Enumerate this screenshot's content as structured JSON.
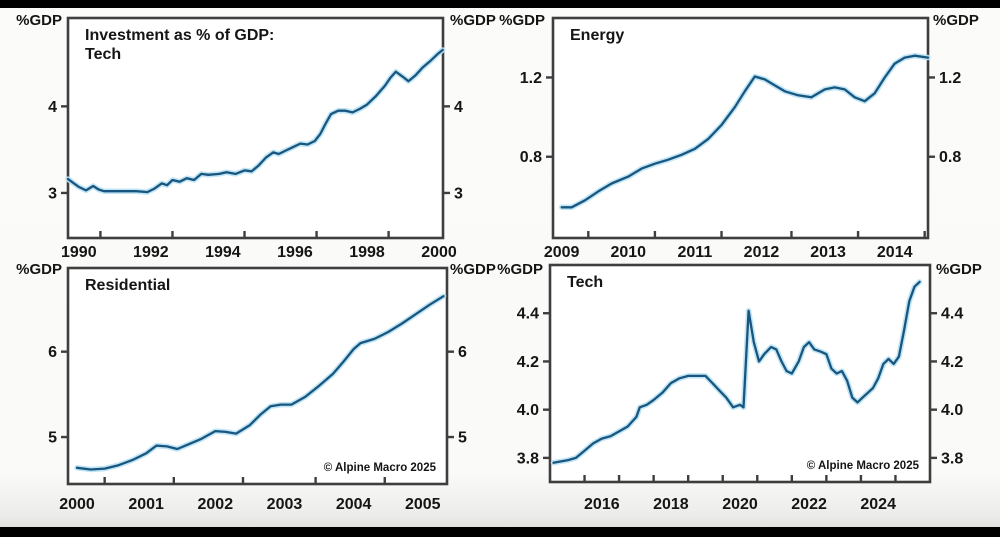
{
  "page": {
    "description": "Four-panel line chart figure: US investment as percent of GDP by sector",
    "unit_label": "%GDP",
    "copyright": "© Alpine Macro 2025"
  },
  "style": {
    "line_color": "#19567f",
    "halo_color": "#b9e2f4",
    "axis_color": "#3e3e3e",
    "text_color": "#151515",
    "plot_bg": "#ffffff"
  },
  "chart_data": [
    {
      "id": "tech-1990s",
      "type": "line",
      "title_lines": [
        "Investment as % of GDP:",
        "Tech"
      ],
      "unit": "%GDP",
      "xlim": [
        1989.7,
        2000.11
      ],
      "ylim": [
        2.48,
        5.02
      ],
      "yticks": [
        3,
        4
      ],
      "ytick_labels": [
        "3",
        "4"
      ],
      "xtick_label_values": [
        1990,
        1992,
        1994,
        1996,
        1998,
        2000
      ],
      "xtick_labels": [
        "1990",
        "1992",
        "1994",
        "1996",
        "1998",
        "2000"
      ],
      "xtick_marks": [
        1990.6,
        1992.6,
        1994.6,
        1996.6,
        1998.6
      ],
      "show_copyright": false,
      "x": [
        1989.7,
        1990.0,
        1990.2,
        1990.4,
        1990.55,
        1990.7,
        1991.0,
        1991.3,
        1991.6,
        1991.9,
        1992.1,
        1992.3,
        1992.45,
        1992.6,
        1992.8,
        1993.0,
        1993.2,
        1993.4,
        1993.6,
        1993.9,
        1994.1,
        1994.35,
        1994.6,
        1994.8,
        1995.0,
        1995.2,
        1995.4,
        1995.55,
        1995.75,
        1995.95,
        1996.15,
        1996.35,
        1996.55,
        1996.7,
        1996.85,
        1997.0,
        1997.2,
        1997.4,
        1997.6,
        1997.8,
        1998.0,
        1998.25,
        1998.5,
        1998.65,
        1998.8,
        1999.0,
        1999.15,
        1999.35,
        1999.55,
        1999.75,
        1999.95,
        2000.1
      ],
      "y": [
        3.16,
        3.07,
        3.03,
        3.08,
        3.04,
        3.02,
        3.02,
        3.02,
        3.02,
        3.01,
        3.05,
        3.11,
        3.09,
        3.15,
        3.13,
        3.17,
        3.15,
        3.22,
        3.21,
        3.22,
        3.24,
        3.22,
        3.26,
        3.25,
        3.32,
        3.41,
        3.47,
        3.45,
        3.49,
        3.53,
        3.57,
        3.56,
        3.6,
        3.68,
        3.8,
        3.91,
        3.95,
        3.95,
        3.93,
        3.97,
        4.02,
        4.12,
        4.24,
        4.33,
        4.4,
        4.34,
        4.29,
        4.36,
        4.45,
        4.52,
        4.6,
        4.65
      ]
    },
    {
      "id": "energy",
      "type": "line",
      "title_lines": [
        "Energy"
      ],
      "unit": "%GDP",
      "xlim": [
        2008.87,
        2014.5
      ],
      "ylim": [
        0.39,
        1.5
      ],
      "yticks": [
        0.8,
        1.2
      ],
      "ytick_labels": [
        "0.8",
        "1.2"
      ],
      "xtick_label_values": [
        2009,
        2010,
        2011,
        2012,
        2013,
        2014
      ],
      "xtick_labels": [
        "2009",
        "2010",
        "2011",
        "2012",
        "2013",
        "2014"
      ],
      "xtick_marks": [
        2009.4,
        2010.4,
        2011.4,
        2012.45,
        2013.45,
        2014.45
      ],
      "show_copyright": false,
      "x": [
        2009.0,
        2009.15,
        2009.35,
        2009.55,
        2009.75,
        2010.0,
        2010.2,
        2010.4,
        2010.6,
        2010.8,
        2011.0,
        2011.2,
        2011.4,
        2011.6,
        2011.75,
        2011.9,
        2012.05,
        2012.2,
        2012.35,
        2012.55,
        2012.75,
        2012.95,
        2013.1,
        2013.25,
        2013.4,
        2013.55,
        2013.7,
        2013.85,
        2014.0,
        2014.15,
        2014.3,
        2014.5
      ],
      "y": [
        0.545,
        0.545,
        0.58,
        0.625,
        0.665,
        0.7,
        0.74,
        0.765,
        0.785,
        0.81,
        0.84,
        0.89,
        0.96,
        1.05,
        1.13,
        1.205,
        1.19,
        1.16,
        1.13,
        1.11,
        1.1,
        1.14,
        1.15,
        1.14,
        1.1,
        1.08,
        1.12,
        1.2,
        1.27,
        1.3,
        1.31,
        1.3
      ]
    },
    {
      "id": "residential",
      "type": "line",
      "title_lines": [
        "Residential"
      ],
      "unit": "%GDP",
      "xlim": [
        1999.87,
        2005.35
      ],
      "ylim": [
        4.45,
        6.98
      ],
      "yticks": [
        5,
        6
      ],
      "ytick_labels": [
        "5",
        "6"
      ],
      "xtick_label_values": [
        2000,
        2001,
        2002,
        2003,
        2004,
        2005
      ],
      "xtick_labels": [
        "2000",
        "2001",
        "2002",
        "2003",
        "2004",
        "2005"
      ],
      "xtick_marks": [
        2000.4,
        2001.4,
        2002.4,
        2003.45,
        2004.45
      ],
      "show_copyright": true,
      "x": [
        2000.0,
        2000.2,
        2000.4,
        2000.6,
        2000.8,
        2001.0,
        2001.15,
        2001.3,
        2001.45,
        2001.6,
        2001.8,
        2002.0,
        2002.15,
        2002.3,
        2002.5,
        2002.65,
        2002.8,
        2002.95,
        2003.1,
        2003.3,
        2003.5,
        2003.7,
        2003.85,
        2004.0,
        2004.1,
        2004.3,
        2004.5,
        2004.7,
        2004.9,
        2005.1,
        2005.3
      ],
      "y": [
        4.64,
        4.62,
        4.63,
        4.67,
        4.73,
        4.81,
        4.9,
        4.89,
        4.86,
        4.91,
        4.98,
        5.07,
        5.06,
        5.04,
        5.14,
        5.26,
        5.36,
        5.38,
        5.38,
        5.47,
        5.6,
        5.74,
        5.88,
        6.03,
        6.1,
        6.15,
        6.23,
        6.33,
        6.44,
        6.55,
        6.65
      ]
    },
    {
      "id": "tech-2020s",
      "type": "line",
      "title_lines": [
        "Tech"
      ],
      "unit": "%GDP",
      "xlim": [
        2014.5,
        2025.5
      ],
      "ylim": [
        3.7,
        4.6
      ],
      "yticks": [
        3.8,
        4.0,
        4.2,
        4.4
      ],
      "ytick_labels": [
        "3.8",
        "4.0",
        "4.2",
        "4.4"
      ],
      "xtick_label_values": [
        2016,
        2018,
        2020,
        2022,
        2024
      ],
      "xtick_labels": [
        "2016",
        "2018",
        "2020",
        "2022",
        "2024"
      ],
      "xtick_marks": [
        2015.5,
        2016.5,
        2017.5,
        2018.5,
        2019.5,
        2020.5,
        2021.5,
        2022.5,
        2023.5,
        2024.5
      ],
      "show_copyright": true,
      "x": [
        2014.6,
        2015.0,
        2015.25,
        2015.5,
        2015.75,
        2016.0,
        2016.25,
        2016.5,
        2016.75,
        2017.0,
        2017.1,
        2017.3,
        2017.5,
        2017.75,
        2018.0,
        2018.25,
        2018.5,
        2018.75,
        2019.0,
        2019.2,
        2019.4,
        2019.6,
        2019.8,
        2020.0,
        2020.1,
        2020.25,
        2020.4,
        2020.55,
        2020.7,
        2020.9,
        2021.05,
        2021.2,
        2021.35,
        2021.5,
        2021.7,
        2021.85,
        2022.0,
        2022.15,
        2022.35,
        2022.5,
        2022.65,
        2022.8,
        2022.95,
        2023.1,
        2023.25,
        2023.4,
        2023.55,
        2023.7,
        2023.85,
        2024.0,
        2024.15,
        2024.3,
        2024.45,
        2024.6,
        2024.75,
        2024.9,
        2025.05,
        2025.2
      ],
      "y": [
        3.78,
        3.79,
        3.8,
        3.83,
        3.86,
        3.88,
        3.89,
        3.91,
        3.93,
        3.97,
        4.01,
        4.02,
        4.04,
        4.07,
        4.11,
        4.13,
        4.14,
        4.14,
        4.14,
        4.11,
        4.08,
        4.05,
        4.01,
        4.02,
        4.01,
        4.41,
        4.28,
        4.2,
        4.23,
        4.26,
        4.25,
        4.2,
        4.16,
        4.15,
        4.2,
        4.26,
        4.28,
        4.25,
        4.24,
        4.23,
        4.17,
        4.15,
        4.16,
        4.12,
        4.05,
        4.03,
        4.05,
        4.07,
        4.09,
        4.13,
        4.19,
        4.21,
        4.19,
        4.22,
        4.33,
        4.45,
        4.51,
        4.53
      ]
    }
  ]
}
